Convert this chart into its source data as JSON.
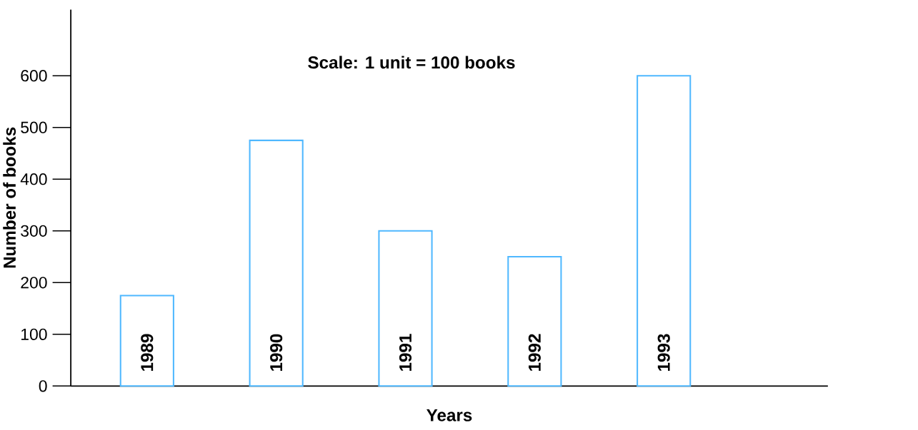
{
  "chart_data": {
    "type": "bar",
    "categories": [
      "1989",
      "1990",
      "1991",
      "1992",
      "1993"
    ],
    "values": [
      175,
      475,
      300,
      250,
      600
    ],
    "color": "#4fb8ff",
    "ylim": [
      0,
      728
    ],
    "yticks": [
      0,
      100,
      200,
      300,
      400,
      500,
      600
    ],
    "xlabel": "Years",
    "ylabel": "Number of books",
    "annotations": [
      "Scale: 1 unit =  100 books"
    ]
  }
}
